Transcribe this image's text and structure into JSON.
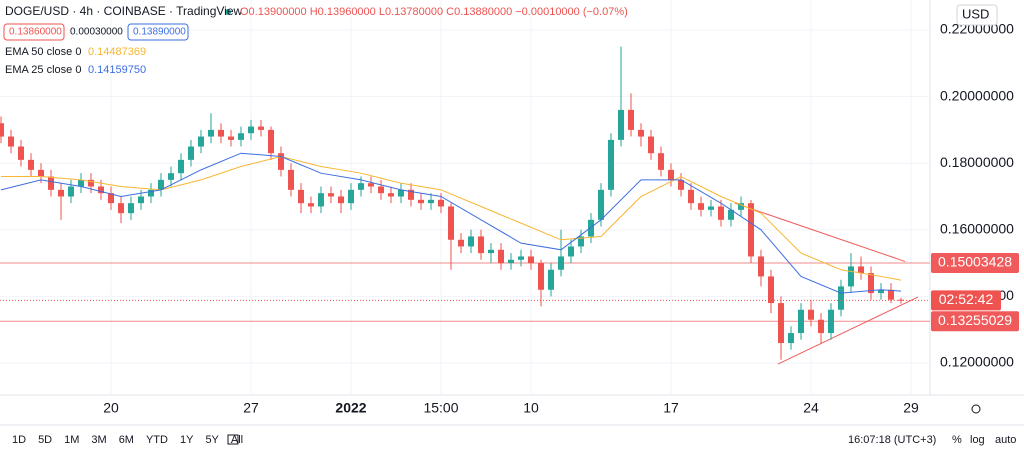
{
  "header": {
    "symbol": "DOGE/USD · 4h · COINBASE · TradingView",
    "ohlc": "O0.13900000 H0.13960000 L0.13780000 C0.13880000 −0.00010000 (−0.07%)",
    "bid": "0.13860000",
    "spread": "0.00030000",
    "ask": "0.13890000"
  },
  "legend": [
    {
      "name": "EMA 50 close 0",
      "value": "0.14487369"
    },
    {
      "name": "EMA 25 close 0",
      "value": "0.14159750"
    }
  ],
  "currency": "USD",
  "chart_data": {
    "type": "candlestick",
    "up_color": "#26a69a",
    "down_color": "#ef5350",
    "x": [
      -5.5,
      -5,
      -4.5,
      -4,
      -3.5,
      -3,
      -2.5,
      -2,
      -1.5,
      -1,
      -0.5,
      0,
      0.5,
      1,
      1.5,
      2,
      2.5,
      3,
      3.5,
      4,
      4.5,
      5,
      5.5,
      6,
      6.5,
      7,
      7.5,
      8,
      8.5,
      9,
      9.5,
      10,
      10.5,
      11,
      11.5,
      12,
      12.5,
      13,
      13.5,
      14,
      14.5,
      15,
      15.5,
      16,
      16.5,
      17,
      17.5,
      18,
      18.5,
      19,
      19.5,
      20,
      20.5,
      21,
      21.5,
      22,
      22.5,
      23,
      23.5,
      24,
      24.5,
      25,
      25.5,
      26,
      26.5,
      27,
      27.5,
      28,
      28.5,
      29,
      29.5,
      30,
      30.5,
      31,
      31.5,
      32,
      32.5,
      33,
      33.5,
      34,
      34.5,
      35,
      35.5,
      36,
      36.5,
      37,
      37.5,
      38,
      38.5,
      39,
      39.5
    ],
    "open": [
      0.192,
      0.188,
      0.185,
      0.181,
      0.178,
      0.176,
      0.172,
      0.17,
      0.173,
      0.175,
      0.173,
      0.171,
      0.168,
      0.165,
      0.168,
      0.17,
      0.172,
      0.175,
      0.177,
      0.181,
      0.185,
      0.188,
      0.19,
      0.188,
      0.187,
      0.189,
      0.191,
      0.19,
      0.183,
      0.178,
      0.172,
      0.168,
      0.167,
      0.171,
      0.17,
      0.168,
      0.172,
      0.174,
      0.173,
      0.171,
      0.17,
      0.172,
      0.169,
      0.168,
      0.169,
      0.167,
      0.157,
      0.155,
      0.158,
      0.153,
      0.154,
      0.15,
      0.151,
      0.152,
      0.15,
      0.142,
      0.148,
      0.152,
      0.155,
      0.158,
      0.163,
      0.172,
      0.187,
      0.196,
      0.19,
      0.188,
      0.183,
      0.178,
      0.175,
      0.172,
      0.168,
      0.166,
      0.167,
      0.163,
      0.166,
      0.168,
      0.152,
      0.146,
      0.138,
      0.126,
      0.129,
      0.136,
      0.133,
      0.129,
      0.136,
      0.143,
      0.149,
      0.147,
      0.141,
      0.142,
      0.139
    ],
    "high": [
      0.194,
      0.19,
      0.187,
      0.183,
      0.18,
      0.178,
      0.174,
      0.175,
      0.177,
      0.177,
      0.175,
      0.173,
      0.17,
      0.17,
      0.172,
      0.174,
      0.177,
      0.179,
      0.183,
      0.187,
      0.19,
      0.195,
      0.192,
      0.19,
      0.191,
      0.193,
      0.193,
      0.191,
      0.185,
      0.18,
      0.174,
      0.17,
      0.173,
      0.173,
      0.172,
      0.174,
      0.176,
      0.176,
      0.175,
      0.173,
      0.174,
      0.174,
      0.171,
      0.171,
      0.171,
      0.168,
      0.159,
      0.16,
      0.16,
      0.156,
      0.156,
      0.153,
      0.154,
      0.154,
      0.151,
      0.15,
      0.16,
      0.157,
      0.16,
      0.165,
      0.174,
      0.189,
      0.215,
      0.201,
      0.192,
      0.19,
      0.185,
      0.18,
      0.177,
      0.174,
      0.17,
      0.169,
      0.169,
      0.168,
      0.17,
      0.169,
      0.154,
      0.148,
      0.14,
      0.131,
      0.138,
      0.139,
      0.135,
      0.138,
      0.145,
      0.153,
      0.152,
      0.149,
      0.144,
      0.144,
      0.1396
    ],
    "low": [
      0.186,
      0.183,
      0.179,
      0.176,
      0.174,
      0.17,
      0.163,
      0.168,
      0.171,
      0.171,
      0.169,
      0.166,
      0.162,
      0.163,
      0.166,
      0.168,
      0.17,
      0.173,
      0.175,
      0.179,
      0.183,
      0.186,
      0.186,
      0.185,
      0.185,
      0.187,
      0.188,
      0.181,
      0.176,
      0.17,
      0.165,
      0.165,
      0.165,
      0.168,
      0.165,
      0.166,
      0.17,
      0.171,
      0.169,
      0.168,
      0.168,
      0.167,
      0.166,
      0.166,
      0.165,
      0.148,
      0.153,
      0.153,
      0.151,
      0.15,
      0.148,
      0.148,
      0.149,
      0.148,
      0.137,
      0.14,
      0.146,
      0.15,
      0.153,
      0.156,
      0.161,
      0.17,
      0.185,
      0.188,
      0.185,
      0.181,
      0.176,
      0.173,
      0.17,
      0.166,
      0.164,
      0.164,
      0.161,
      0.161,
      0.164,
      0.15,
      0.143,
      0.135,
      0.121,
      0.124,
      0.127,
      0.131,
      0.126,
      0.127,
      0.134,
      0.141,
      0.145,
      0.139,
      0.139,
      0.138,
      0.1378
    ],
    "close": [
      0.188,
      0.185,
      0.181,
      0.178,
      0.176,
      0.172,
      0.17,
      0.173,
      0.175,
      0.173,
      0.171,
      0.168,
      0.165,
      0.168,
      0.17,
      0.172,
      0.175,
      0.177,
      0.181,
      0.185,
      0.188,
      0.19,
      0.188,
      0.187,
      0.189,
      0.191,
      0.19,
      0.183,
      0.178,
      0.172,
      0.168,
      0.167,
      0.171,
      0.17,
      0.168,
      0.172,
      0.174,
      0.173,
      0.171,
      0.17,
      0.172,
      0.169,
      0.168,
      0.169,
      0.167,
      0.157,
      0.155,
      0.158,
      0.153,
      0.154,
      0.15,
      0.151,
      0.152,
      0.15,
      0.142,
      0.148,
      0.152,
      0.155,
      0.158,
      0.163,
      0.172,
      0.187,
      0.196,
      0.19,
      0.188,
      0.183,
      0.178,
      0.175,
      0.172,
      0.168,
      0.166,
      0.167,
      0.163,
      0.166,
      0.168,
      0.152,
      0.146,
      0.138,
      0.126,
      0.129,
      0.136,
      0.133,
      0.129,
      0.136,
      0.143,
      0.149,
      0.147,
      0.141,
      0.142,
      0.139,
      0.1388
    ],
    "series": [
      {
        "name": "EMA 50",
        "color": "#f7b731",
        "x": [
          -5.5,
          -3.5,
          -1.5,
          0.5,
          2.5,
          4.5,
          6.5,
          8.5,
          10.5,
          12.5,
          14.5,
          16.5,
          18.5,
          20.5,
          22.5,
          24.5,
          26.5,
          28.5,
          30.5,
          32.5,
          34.5,
          36.5,
          38.5,
          39.5
        ],
        "values": [
          0.176,
          0.176,
          0.175,
          0.173,
          0.172,
          0.175,
          0.179,
          0.182,
          0.179,
          0.177,
          0.174,
          0.172,
          0.167,
          0.162,
          0.157,
          0.158,
          0.17,
          0.176,
          0.17,
          0.165,
          0.153,
          0.148,
          0.146,
          0.1449
        ]
      },
      {
        "name": "EMA 25",
        "color": "#3d6ee0",
        "x": [
          -5.5,
          -3.5,
          -1.5,
          0.5,
          2.5,
          4.5,
          6.5,
          8.5,
          10.5,
          12.5,
          14.5,
          16.5,
          18.5,
          20.5,
          22.5,
          24.5,
          26.5,
          28.5,
          30.5,
          32.5,
          34.5,
          36.5,
          38.5,
          39.5
        ],
        "values": [
          0.172,
          0.175,
          0.173,
          0.17,
          0.172,
          0.178,
          0.183,
          0.182,
          0.177,
          0.175,
          0.172,
          0.17,
          0.163,
          0.156,
          0.154,
          0.163,
          0.175,
          0.175,
          0.168,
          0.16,
          0.146,
          0.141,
          0.142,
          0.1416
        ]
      }
    ],
    "xlim": [
      -5.55,
      40.95
    ],
    "xticks": [
      {
        "value": 0,
        "label": "20"
      },
      {
        "value": 7,
        "label": "27"
      },
      {
        "value": 12,
        "label": "2022"
      },
      {
        "value": 16.5,
        "label": "15:00"
      },
      {
        "value": 21,
        "label": "10"
      },
      {
        "value": 28,
        "label": "17"
      },
      {
        "value": 35,
        "label": "24"
      },
      {
        "value": 40,
        "label": "29"
      }
    ],
    "ylim": [
      0.1104,
      0.229
    ],
    "yticks": [
      {
        "value": 0.12,
        "label": "0.12000000"
      },
      {
        "value": 0.14,
        "label": "0.14000000"
      },
      {
        "value": 0.16,
        "label": "0.16000000"
      },
      {
        "value": 0.18,
        "label": "0.18000000"
      },
      {
        "value": 0.2,
        "label": "0.20000000"
      },
      {
        "value": 0.22,
        "label": "0.22000000"
      }
    ],
    "grid": true,
    "hlines": [
      {
        "value": 0.15003428,
        "label": "0.15003428"
      },
      {
        "value": 0.13255029,
        "label": "0.13255029"
      }
    ],
    "price_line": {
      "value": 0.1388,
      "label": "02:52:42"
    },
    "trendlines": [
      {
        "x": [
          31.2,
          39.7
        ],
        "values": [
          0.168,
          0.1505
        ]
      },
      {
        "x": [
          33.35,
          40.35
        ],
        "values": [
          0.1197,
          0.1398
        ]
      }
    ]
  },
  "toolbar": {
    "ranges": [
      "1D",
      "5D",
      "1M",
      "3M",
      "6M",
      "YTD",
      "1Y",
      "5Y",
      "All"
    ],
    "time": "16:07:18 (UTC+3)",
    "options": [
      "%",
      "log",
      "auto"
    ]
  }
}
